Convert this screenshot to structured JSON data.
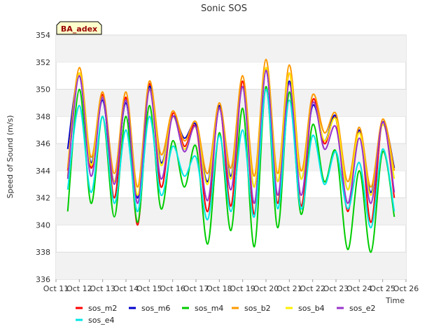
{
  "chart_data": {
    "type": "line",
    "title": "Sonic SOS",
    "badge": "BA_adex",
    "xlabel": "Time",
    "ylabel": "Speed of Sound (m/s)",
    "ylim": [
      336,
      354
    ],
    "yticks": [
      336,
      338,
      340,
      342,
      344,
      346,
      348,
      350,
      352,
      354
    ],
    "xlim": [
      "Oct 11",
      "Oct 26"
    ],
    "xticks": [
      "Oct 11",
      "Oct 12",
      "Oct 13",
      "Oct 14",
      "Oct 15",
      "Oct 16",
      "Oct 17",
      "Oct 18",
      "Oct 19",
      "Oct 20",
      "Oct 21",
      "Oct 22",
      "Oct 23",
      "Oct 24",
      "Oct 25",
      "Oct 26"
    ],
    "grid": "horizontal-bands",
    "legend_position": "bottom",
    "x": [
      "Oct 11 00:00",
      "Oct 11 12:00",
      "Oct 12 00:00",
      "Oct 12 12:00",
      "Oct 13 00:00",
      "Oct 13 12:00",
      "Oct 14 00:00",
      "Oct 14 12:00",
      "Oct 15 00:00",
      "Oct 15 12:00",
      "Oct 16 00:00",
      "Oct 16 12:00",
      "Oct 17 00:00",
      "Oct 17 12:00",
      "Oct 18 00:00",
      "Oct 18 12:00",
      "Oct 19 00:00",
      "Oct 19 12:00",
      "Oct 20 00:00",
      "Oct 20 12:00",
      "Oct 21 00:00",
      "Oct 21 12:00",
      "Oct 22 00:00",
      "Oct 22 12:00",
      "Oct 23 00:00",
      "Oct 23 12:00",
      "Oct 24 00:00",
      "Oct 24 12:00",
      "Oct 25 00:00",
      "Oct 25 12:00"
    ],
    "series": [
      {
        "name": "sos_m2",
        "color": "#ff0000",
        "values": [
          null,
          344.0,
          351.2,
          344.2,
          349.6,
          342.0,
          349.4,
          340.0,
          350.4,
          342.8,
          348.2,
          345.8,
          347.2,
          341.0,
          348.8,
          341.4,
          350.6,
          340.8,
          351.6,
          341.6,
          351.2,
          341.4,
          349.2,
          346.0,
          347.8,
          341.0,
          347.0,
          340.2,
          347.6,
          342.0
        ]
      },
      {
        "name": "sos_m6",
        "color": "#0000cc",
        "values": [
          null,
          345.6,
          351.0,
          344.6,
          349.2,
          343.2,
          349.0,
          342.0,
          350.2,
          344.6,
          348.0,
          346.4,
          347.4,
          343.2,
          348.8,
          343.6,
          350.2,
          342.8,
          351.4,
          343.2,
          350.6,
          343.4,
          348.8,
          346.2,
          348.0,
          342.6,
          347.0,
          342.4,
          347.6,
          344.2
        ]
      },
      {
        "name": "sos_m4",
        "color": "#00cc00",
        "values": [
          null,
          341.0,
          350.0,
          341.6,
          348.0,
          340.6,
          348.0,
          340.2,
          348.8,
          341.2,
          346.2,
          342.8,
          345.8,
          338.6,
          346.8,
          339.6,
          348.6,
          338.4,
          350.2,
          339.8,
          349.8,
          340.8,
          347.4,
          343.2,
          345.4,
          338.2,
          344.0,
          338.0,
          345.4,
          340.6
        ]
      },
      {
        "name": "sos_b2",
        "color": "#ff9900",
        "values": [
          null,
          344.2,
          351.6,
          345.0,
          349.8,
          343.8,
          349.8,
          342.8,
          350.6,
          345.2,
          348.4,
          346.2,
          347.6,
          343.8,
          349.0,
          344.2,
          351.0,
          343.6,
          352.2,
          343.8,
          351.8,
          344.0,
          349.6,
          346.8,
          348.2,
          343.2,
          347.2,
          342.8,
          347.8,
          344.0
        ]
      },
      {
        "name": "sos_b4",
        "color": "#ffee00",
        "values": [
          null,
          343.6,
          351.2,
          344.4,
          349.4,
          343.2,
          349.2,
          342.2,
          350.0,
          344.4,
          348.0,
          345.6,
          347.2,
          343.0,
          348.6,
          343.4,
          350.2,
          342.8,
          351.6,
          343.2,
          351.2,
          343.4,
          349.0,
          346.2,
          347.8,
          342.6,
          346.8,
          342.2,
          347.4,
          343.4
        ]
      },
      {
        "name": "sos_e2",
        "color": "#9933cc",
        "values": [
          null,
          343.4,
          351.0,
          343.6,
          349.4,
          343.0,
          349.2,
          341.6,
          350.0,
          343.4,
          348.0,
          345.4,
          347.2,
          341.8,
          348.6,
          342.6,
          350.2,
          341.6,
          351.4,
          342.2,
          350.4,
          342.2,
          349.0,
          345.6,
          347.2,
          341.6,
          346.4,
          341.6,
          347.6,
          342.4
        ]
      },
      {
        "name": "sos_e4",
        "color": "#00e5e5",
        "values": [
          null,
          342.6,
          348.8,
          342.4,
          348.0,
          341.6,
          347.0,
          341.0,
          348.0,
          342.2,
          345.8,
          343.6,
          345.0,
          340.4,
          346.6,
          341.0,
          347.0,
          340.6,
          350.0,
          341.2,
          349.2,
          341.2,
          346.6,
          343.0,
          345.4,
          341.2,
          344.6,
          339.8,
          345.6,
          341.0
        ]
      }
    ]
  }
}
